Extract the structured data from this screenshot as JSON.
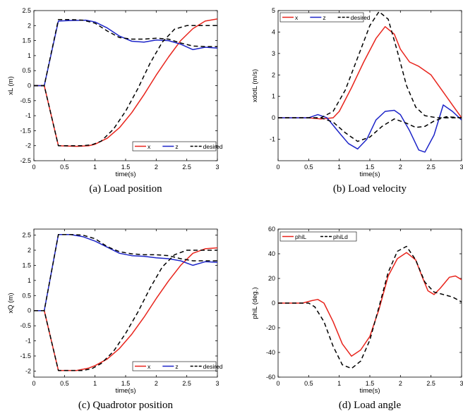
{
  "chart_data": [
    {
      "type": "line",
      "caption": "(a) Load position",
      "xlabel": "time(s)",
      "ylabel": "xL (m)",
      "xlim": [
        0,
        3
      ],
      "ylim": [
        -2.5,
        2.5
      ],
      "xticks": [
        "0",
        "0.5",
        "1",
        "1.5",
        "2",
        "2.5",
        "3"
      ],
      "yticks": [
        "-2.5",
        "-2",
        "-1.5",
        "-1",
        "-0.5",
        "0",
        "0.5",
        "1",
        "1.5",
        "2",
        "2.5"
      ],
      "legend": {
        "placement": "bottom-right",
        "entries": [
          "x",
          "z",
          "desired"
        ]
      },
      "series": [
        {
          "name": "x",
          "color": "#e8241c",
          "dash": "solid",
          "x": [
            0,
            0.17,
            0.4,
            0.7,
            0.9,
            1.0,
            1.2,
            1.4,
            1.6,
            1.8,
            2.0,
            2.2,
            2.4,
            2.6,
            2.8,
            3.0
          ],
          "y": [
            0,
            0,
            -2.0,
            -2.02,
            -2.0,
            -1.95,
            -1.75,
            -1.4,
            -0.9,
            -0.3,
            0.35,
            0.95,
            1.5,
            1.9,
            2.15,
            2.22
          ]
        },
        {
          "name": "z",
          "color": "#1c24c8",
          "dash": "solid",
          "x": [
            0,
            0.17,
            0.4,
            0.6,
            0.85,
            1.0,
            1.2,
            1.4,
            1.6,
            1.8,
            2.0,
            2.2,
            2.4,
            2.6,
            2.8,
            3.0
          ],
          "y": [
            0,
            0,
            2.15,
            2.17,
            2.18,
            2.12,
            1.92,
            1.65,
            1.48,
            1.45,
            1.52,
            1.5,
            1.38,
            1.2,
            1.28,
            1.25
          ]
        },
        {
          "name": "desired x",
          "color": "#000000",
          "dash": "dashed",
          "x": [
            0,
            0.17,
            0.4,
            0.8,
            0.95,
            1.1,
            1.3,
            1.5,
            1.7,
            1.9,
            2.1,
            2.3,
            2.5,
            3.0
          ],
          "y": [
            0,
            0,
            -2.0,
            -2.0,
            -1.97,
            -1.85,
            -1.45,
            -0.85,
            -0.1,
            0.75,
            1.45,
            1.88,
            2.0,
            2.0
          ]
        },
        {
          "name": "desired z",
          "color": "#000000",
          "dash": "dashed",
          "x": [
            0,
            0.17,
            0.4,
            0.6,
            0.8,
            1.0,
            1.2,
            1.4,
            1.6,
            1.8,
            2.0,
            2.2,
            2.4,
            2.6,
            2.8,
            3.0
          ],
          "y": [
            0,
            0,
            2.2,
            2.2,
            2.18,
            2.08,
            1.82,
            1.6,
            1.55,
            1.55,
            1.58,
            1.55,
            1.42,
            1.32,
            1.3,
            1.3
          ]
        }
      ]
    },
    {
      "type": "line",
      "caption": "(b) Load velocity",
      "xlabel": "time(s)",
      "ylabel": "xdotL (m/s)",
      "xlim": [
        0,
        3
      ],
      "ylim": [
        -2,
        5
      ],
      "xticks": [
        "0",
        "0.5",
        "1",
        "1.5",
        "2",
        "2.5",
        "3"
      ],
      "yticks": [
        "-1",
        "0",
        "1",
        "2",
        "3",
        "4",
        "5"
      ],
      "legend": {
        "placement": "top-left",
        "entries": [
          "x",
          "z",
          "desired"
        ]
      },
      "series": [
        {
          "name": "x",
          "color": "#e8241c",
          "dash": "solid",
          "x": [
            0,
            0.5,
            0.7,
            0.9,
            1.0,
            1.2,
            1.4,
            1.6,
            1.75,
            1.9,
            2.0,
            2.15,
            2.3,
            2.5,
            2.7,
            2.85,
            3.0
          ],
          "y": [
            0,
            0,
            -0.05,
            0.0,
            0.3,
            1.4,
            2.6,
            3.7,
            4.25,
            3.9,
            3.2,
            2.6,
            2.4,
            2.0,
            1.2,
            0.6,
            0.0
          ]
        },
        {
          "name": "z",
          "color": "#1c24c8",
          "dash": "solid",
          "x": [
            0,
            0.5,
            0.65,
            0.8,
            1.0,
            1.15,
            1.3,
            1.45,
            1.6,
            1.75,
            1.9,
            2.0,
            2.15,
            2.3,
            2.4,
            2.55,
            2.7,
            2.85,
            3.0
          ],
          "y": [
            0,
            0,
            0.15,
            0.0,
            -0.7,
            -1.2,
            -1.45,
            -1.0,
            -0.1,
            0.3,
            0.35,
            0.15,
            -0.6,
            -1.5,
            -1.6,
            -0.8,
            0.6,
            0.3,
            -0.1
          ]
        },
        {
          "name": "desired x",
          "color": "#000000",
          "dash": "dashed",
          "x": [
            0,
            0.7,
            0.9,
            1.1,
            1.3,
            1.5,
            1.65,
            1.8,
            1.95,
            2.1,
            2.25,
            2.4,
            2.6,
            3.0
          ],
          "y": [
            0,
            0,
            0.3,
            1.3,
            2.8,
            4.3,
            4.95,
            4.6,
            3.1,
            1.5,
            0.5,
            0.1,
            0.0,
            0.0
          ]
        },
        {
          "name": "desired z",
          "color": "#000000",
          "dash": "dashed",
          "x": [
            0,
            0.7,
            0.9,
            1.1,
            1.3,
            1.5,
            1.7,
            1.9,
            2.1,
            2.25,
            2.4,
            2.55,
            2.75,
            3.0
          ],
          "y": [
            0,
            0,
            -0.2,
            -0.7,
            -1.1,
            -0.9,
            -0.4,
            -0.05,
            -0.25,
            -0.45,
            -0.4,
            -0.15,
            0.05,
            0.0
          ]
        }
      ]
    },
    {
      "type": "line",
      "caption": "(c) Quadrotor position",
      "xlabel": "time(s)",
      "ylabel": "xQ (m)",
      "xlim": [
        0,
        3
      ],
      "ylim": [
        -2.2,
        2.7
      ],
      "xticks": [
        "0",
        "0.5",
        "1",
        "1.5",
        "2",
        "2.5",
        "3"
      ],
      "yticks": [
        "-2",
        "-1.5",
        "-1",
        "-0.5",
        "0",
        "0.5",
        "1",
        "1.5",
        "2",
        "2.5"
      ],
      "legend": {
        "placement": "bottom-right",
        "entries": [
          "x",
          "z",
          "desired"
        ]
      },
      "series": [
        {
          "name": "x",
          "color": "#e8241c",
          "dash": "solid",
          "x": [
            0,
            0.17,
            0.4,
            0.7,
            0.9,
            1.0,
            1.2,
            1.4,
            1.6,
            1.8,
            2.0,
            2.2,
            2.4,
            2.6,
            2.8,
            3.0
          ],
          "y": [
            0,
            0,
            -1.98,
            -1.98,
            -1.9,
            -1.82,
            -1.6,
            -1.25,
            -0.78,
            -0.22,
            0.4,
            0.98,
            1.5,
            1.9,
            2.05,
            2.08
          ]
        },
        {
          "name": "z",
          "color": "#1c24c8",
          "dash": "solid",
          "x": [
            0,
            0.17,
            0.4,
            0.6,
            0.8,
            1.0,
            1.2,
            1.4,
            1.6,
            1.8,
            2.0,
            2.2,
            2.4,
            2.6,
            2.8,
            3.0
          ],
          "y": [
            0,
            0,
            2.52,
            2.52,
            2.45,
            2.3,
            2.1,
            1.9,
            1.82,
            1.8,
            1.75,
            1.72,
            1.65,
            1.5,
            1.62,
            1.6
          ]
        },
        {
          "name": "desired x",
          "color": "#000000",
          "dash": "dashed",
          "x": [
            0,
            0.17,
            0.4,
            0.8,
            0.95,
            1.1,
            1.3,
            1.5,
            1.7,
            1.9,
            2.1,
            2.3,
            2.5,
            3.0
          ],
          "y": [
            0,
            0,
            -1.98,
            -1.98,
            -1.92,
            -1.75,
            -1.35,
            -0.75,
            -0.05,
            0.75,
            1.45,
            1.85,
            2.0,
            2.0
          ]
        },
        {
          "name": "desired z",
          "color": "#000000",
          "dash": "dashed",
          "x": [
            0,
            0.17,
            0.4,
            0.6,
            0.8,
            1.0,
            1.2,
            1.4,
            1.6,
            1.8,
            2.0,
            2.2,
            2.4,
            2.6,
            2.8,
            3.0
          ],
          "y": [
            0,
            0,
            2.52,
            2.52,
            2.5,
            2.38,
            2.12,
            1.95,
            1.88,
            1.85,
            1.85,
            1.82,
            1.72,
            1.65,
            1.65,
            1.65
          ]
        }
      ]
    },
    {
      "type": "line",
      "caption": "(d) Load angle",
      "xlabel": "time(s)",
      "ylabel": "phiL (deg.)",
      "xlim": [
        0,
        3
      ],
      "ylim": [
        -60,
        60
      ],
      "xticks": [
        "0",
        "0.5",
        "1",
        "1.5",
        "2",
        "2.5",
        "3"
      ],
      "yticks": [
        "-60",
        "-40",
        "-20",
        "0",
        "20",
        "40",
        "60"
      ],
      "legend": {
        "placement": "top-left",
        "entries": [
          "phiL",
          "phiLd"
        ]
      },
      "series": [
        {
          "name": "phiL",
          "color": "#e8241c",
          "dash": "solid",
          "x": [
            0,
            0.4,
            0.55,
            0.65,
            0.75,
            0.9,
            1.05,
            1.2,
            1.35,
            1.5,
            1.65,
            1.8,
            1.95,
            2.1,
            2.25,
            2.35,
            2.45,
            2.55,
            2.65,
            2.8,
            2.9,
            3.0
          ],
          "y": [
            0,
            0,
            2,
            3,
            0,
            -15,
            -33,
            -43,
            -38,
            -27,
            -5,
            22,
            36,
            41,
            35,
            22,
            10,
            7,
            12,
            21,
            22,
            19
          ]
        },
        {
          "name": "phiLd",
          "color": "#000000",
          "dash": "dashed",
          "x": [
            0,
            0.5,
            0.6,
            0.75,
            0.9,
            1.05,
            1.2,
            1.35,
            1.5,
            1.65,
            1.8,
            1.95,
            2.1,
            2.25,
            2.4,
            2.55,
            2.7,
            2.85,
            3.0
          ],
          "y": [
            0,
            0,
            -3,
            -15,
            -35,
            -50,
            -53,
            -47,
            -30,
            -3,
            25,
            42,
            46,
            35,
            17,
            9,
            7,
            5,
            1
          ]
        }
      ]
    }
  ]
}
